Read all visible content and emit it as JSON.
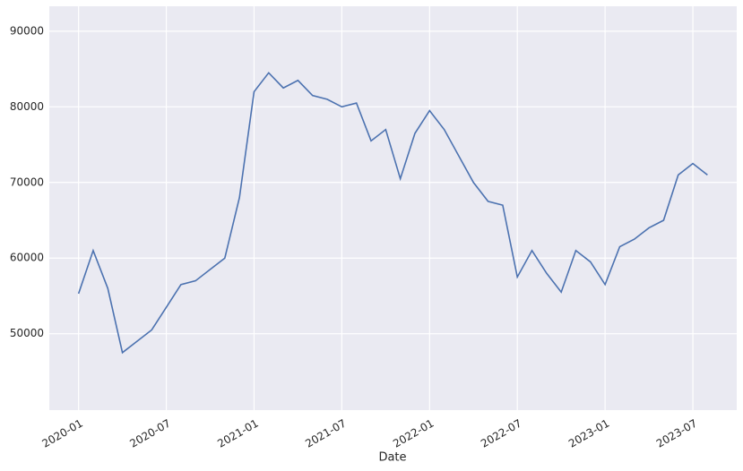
{
  "chart_data": {
    "type": "line",
    "xlabel": "Date",
    "x": [
      "2020-01",
      "2020-02",
      "2020-03",
      "2020-04",
      "2020-05",
      "2020-06",
      "2020-07",
      "2020-08",
      "2020-09",
      "2020-10",
      "2020-11",
      "2020-12",
      "2021-01",
      "2021-02",
      "2021-03",
      "2021-04",
      "2021-05",
      "2021-06",
      "2021-07",
      "2021-08",
      "2021-09",
      "2021-10",
      "2021-11",
      "2021-12",
      "2022-01",
      "2022-02",
      "2022-03",
      "2022-04",
      "2022-05",
      "2022-06",
      "2022-07",
      "2022-08",
      "2022-09",
      "2022-10",
      "2022-11",
      "2022-12",
      "2023-01",
      "2023-02",
      "2023-03",
      "2023-04",
      "2023-05",
      "2023-06",
      "2023-07",
      "2023-08"
    ],
    "series": [
      {
        "color": "#4c72b0",
        "values": [
          55300,
          61000,
          56000,
          47500,
          49000,
          50500,
          53500,
          56500,
          57000,
          58500,
          60000,
          68000,
          82000,
          84500,
          82500,
          83500,
          81500,
          81000,
          80000,
          80500,
          75500,
          77000,
          70500,
          76500,
          79500,
          77000,
          73500,
          70000,
          67500,
          67000,
          57500,
          61000,
          58000,
          55500,
          61000,
          59500,
          56500,
          61500,
          62500,
          64000,
          65000,
          71000,
          72500,
          71000
        ]
      }
    ],
    "xlim": [
      "2019-11",
      "2023-10"
    ],
    "xticks": [
      "2020-01",
      "2020-07",
      "2021-01",
      "2021-07",
      "2022-01",
      "2022-07",
      "2023-01",
      "2023-07"
    ],
    "ylim": [
      39900,
      93300
    ],
    "yticks": [
      50000,
      60000,
      70000,
      80000,
      90000
    ],
    "grid": true
  }
}
